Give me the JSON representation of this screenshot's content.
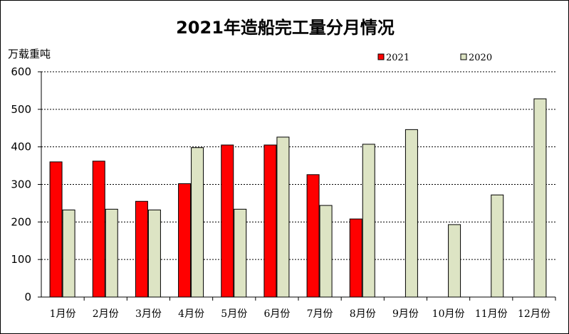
{
  "chart_data": {
    "type": "bar",
    "title": "2021年造船完工量分月情况",
    "ylabel": "万载重吨",
    "xlabel": "",
    "ylim": [
      0,
      600
    ],
    "yticks": [
      0,
      100,
      200,
      300,
      400,
      500,
      600
    ],
    "grid": true,
    "legend_position": "top-right",
    "categories": [
      "1月份",
      "2月份",
      "3月份",
      "4月份",
      "5月份",
      "6月份",
      "7月份",
      "8月份",
      "9月份",
      "10月份",
      "11月份",
      "12月份"
    ],
    "series": [
      {
        "name": "2021",
        "color": "#ff0000",
        "values": [
          360,
          362,
          255,
          302,
          405,
          405,
          326,
          208,
          null,
          null,
          null,
          null
        ]
      },
      {
        "name": "2020",
        "color": "#dde4c4",
        "values": [
          232,
          234,
          232,
          398,
          234,
          426,
          244,
          407,
          446,
          193,
          272,
          528
        ]
      }
    ]
  }
}
